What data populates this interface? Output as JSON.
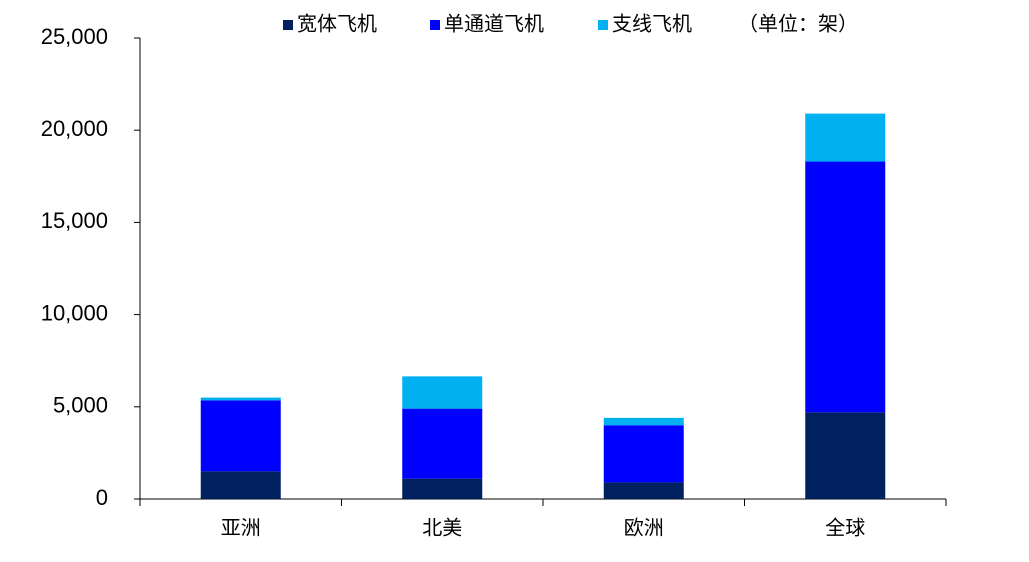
{
  "chart_data": {
    "type": "stacked_bar",
    "annotation": "（单位：架）",
    "categories": [
      "亚洲",
      "北美",
      "欧洲",
      "全球"
    ],
    "series": [
      {
        "name": "宽体飞机",
        "color": "#002060",
        "values": [
          1500,
          1100,
          900,
          4700
        ]
      },
      {
        "name": "单通道飞机",
        "color": "#0000ff",
        "values": [
          3850,
          3800,
          3100,
          13600
        ]
      },
      {
        "name": "支线飞机",
        "color": "#00b0f0",
        "values": [
          150,
          1750,
          400,
          2600
        ]
      }
    ],
    "ylim": [
      0,
      25000
    ],
    "yticks": [
      0,
      {
        "value": 5000,
        "label": "5,000"
      },
      {
        "value": 10000,
        "label": "10,000"
      },
      {
        "value": 15000,
        "label": "15,000"
      },
      {
        "value": 20000,
        "label": "20,000"
      },
      {
        "value": 25000,
        "label": "25,000"
      }
    ],
    "legend": "top"
  }
}
